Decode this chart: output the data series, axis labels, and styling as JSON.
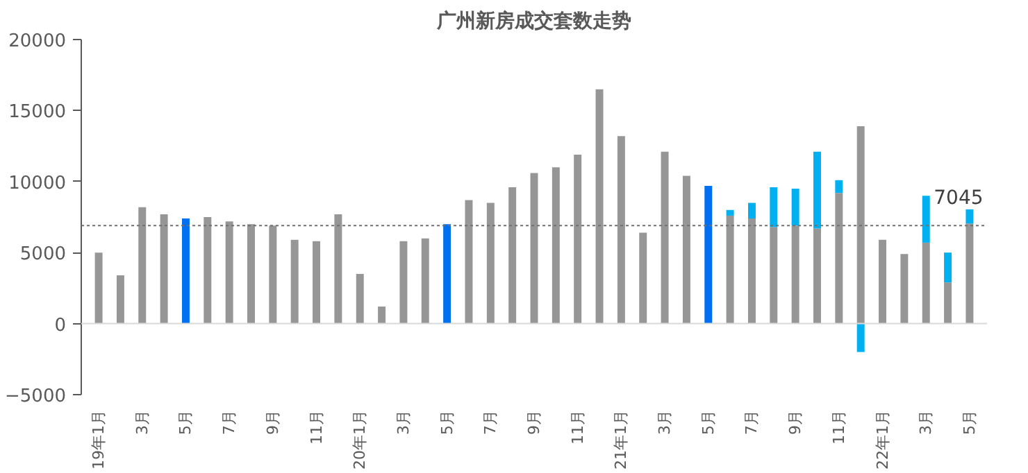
{
  "chart_data": {
    "type": "bar",
    "title": "广州新房成交套数走势",
    "stacked": true,
    "categories": [
      "19年1月",
      null,
      "3月",
      null,
      "5月",
      null,
      "7月",
      null,
      "9月",
      null,
      "11月",
      null,
      "20年1月",
      null,
      "3月",
      null,
      "5月",
      null,
      "7月",
      null,
      "9月",
      null,
      "11月",
      null,
      "21年1月",
      null,
      "3月",
      null,
      "5月",
      null,
      "7月",
      null,
      "9月",
      null,
      "11月",
      null,
      "22年1月",
      null,
      "3月",
      null,
      "5月"
    ],
    "series": [
      {
        "colors": [
          "#969696",
          "#969696",
          "#969696",
          "#969696",
          "#0070f0",
          "#969696",
          "#969696",
          "#969696",
          "#969696",
          "#969696",
          "#969696",
          "#969696",
          "#969696",
          "#969696",
          "#969696",
          "#969696",
          "#0070f0",
          "#969696",
          "#969696",
          "#969696",
          "#969696",
          "#969696",
          "#969696",
          "#969696",
          "#969696",
          "#969696",
          "#969696",
          "#969696",
          "#0070f0",
          "#969696",
          "#969696",
          "#969696",
          "#969696",
          "#969696",
          "#969696",
          "#969696",
          "#969696",
          "#969696",
          "#969696",
          "#969696",
          "#969696"
        ],
        "values": [
          5000,
          3400,
          8200,
          7700,
          7400,
          7500,
          7200,
          7000,
          6900,
          5900,
          5800,
          7700,
          3500,
          1200,
          5800,
          6000,
          7000,
          8700,
          8500,
          9600,
          10600,
          11000,
          11900,
          16500,
          13200,
          6400,
          12100,
          10400,
          9700,
          7600,
          7400,
          6800,
          6900,
          6700,
          9200,
          13900,
          5900,
          4900,
          5700,
          2900,
          7045
        ],
        "value_labels": [
          null,
          null,
          null,
          null,
          null,
          null,
          null,
          null,
          null,
          null,
          null,
          null,
          null,
          null,
          null,
          null,
          null,
          null,
          null,
          null,
          null,
          null,
          null,
          null,
          null,
          null,
          null,
          null,
          null,
          null,
          null,
          null,
          null,
          null,
          null,
          null,
          null,
          null,
          null,
          null,
          "7045"
        ]
      },
      {
        "color": "#00b0f0",
        "values": [
          null,
          null,
          null,
          null,
          null,
          null,
          null,
          null,
          null,
          null,
          null,
          null,
          null,
          null,
          null,
          null,
          null,
          null,
          null,
          null,
          null,
          null,
          null,
          null,
          null,
          null,
          null,
          null,
          null,
          400,
          1100,
          2800,
          2600,
          5400,
          900,
          -2000,
          null,
          null,
          3300,
          2100,
          1000
        ]
      }
    ],
    "ylim": [
      -5000,
      20000
    ],
    "yticks": [
      -5000,
      0,
      5000,
      10000,
      15000,
      20000
    ],
    "ref_lines": [
      {
        "axis": "y",
        "value": 0,
        "color": "#d9d9d9",
        "line_style": "solid"
      },
      {
        "axis": "y",
        "value": 6900,
        "color": "#707070",
        "line_style": "dotted"
      }
    ],
    "grid": false
  }
}
